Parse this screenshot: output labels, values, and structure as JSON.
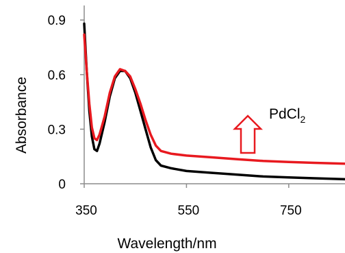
{
  "chart_data": {
    "type": "line",
    "xlabel": "Wavelength/nm",
    "ylabel": "Absorbance",
    "xlim": [
      350,
      860
    ],
    "ylim": [
      0,
      0.98
    ],
    "x_ticks": [
      "350",
      "550",
      "750"
    ],
    "x_tick_values": [
      350,
      550,
      750
    ],
    "y_ticks": [
      "0",
      "0.3",
      "0.6",
      "0.9"
    ],
    "y_tick_values": [
      0,
      0.3,
      0.6,
      0.9
    ],
    "grid": false,
    "annotation": {
      "text": "PdCl",
      "subscript": "2",
      "arrow": "up"
    },
    "series": [
      {
        "color": "#000000",
        "points": [
          [
            350,
            0.88
          ],
          [
            355,
            0.62
          ],
          [
            360,
            0.4
          ],
          [
            365,
            0.26
          ],
          [
            370,
            0.19
          ],
          [
            375,
            0.18
          ],
          [
            380,
            0.22
          ],
          [
            390,
            0.34
          ],
          [
            400,
            0.48
          ],
          [
            410,
            0.58
          ],
          [
            420,
            0.62
          ],
          [
            430,
            0.62
          ],
          [
            440,
            0.58
          ],
          [
            450,
            0.5
          ],
          [
            460,
            0.4
          ],
          [
            470,
            0.3
          ],
          [
            480,
            0.2
          ],
          [
            490,
            0.13
          ],
          [
            500,
            0.1
          ],
          [
            520,
            0.085
          ],
          [
            550,
            0.07
          ],
          [
            600,
            0.06
          ],
          [
            650,
            0.05
          ],
          [
            700,
            0.04
          ],
          [
            750,
            0.035
          ],
          [
            800,
            0.03
          ],
          [
            860,
            0.025
          ]
        ]
      },
      {
        "color": "#e8191f",
        "points": [
          [
            350,
            0.82
          ],
          [
            355,
            0.62
          ],
          [
            360,
            0.44
          ],
          [
            365,
            0.31
          ],
          [
            370,
            0.25
          ],
          [
            375,
            0.24
          ],
          [
            380,
            0.27
          ],
          [
            390,
            0.37
          ],
          [
            400,
            0.5
          ],
          [
            410,
            0.59
          ],
          [
            420,
            0.63
          ],
          [
            430,
            0.62
          ],
          [
            440,
            0.59
          ],
          [
            450,
            0.52
          ],
          [
            460,
            0.44
          ],
          [
            470,
            0.35
          ],
          [
            480,
            0.27
          ],
          [
            490,
            0.21
          ],
          [
            500,
            0.18
          ],
          [
            520,
            0.165
          ],
          [
            550,
            0.155
          ],
          [
            600,
            0.145
          ],
          [
            650,
            0.135
          ],
          [
            700,
            0.125
          ],
          [
            750,
            0.12
          ],
          [
            800,
            0.115
          ],
          [
            860,
            0.11
          ]
        ]
      }
    ]
  }
}
